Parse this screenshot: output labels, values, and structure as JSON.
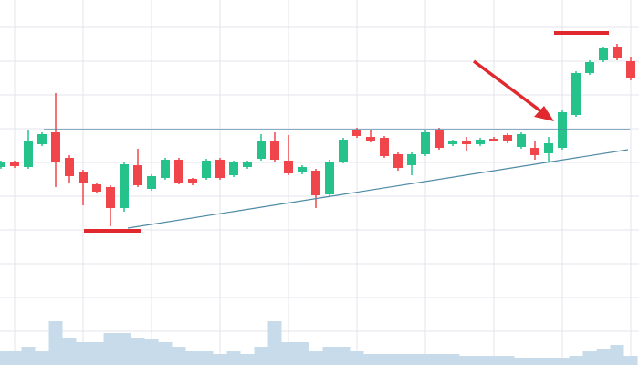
{
  "chart_data": {
    "type": "candlestick",
    "ylim": [
      0,
      400
    ],
    "up_color": "#26c28b",
    "down_color": "#f0454a",
    "volume_color": "#c7dbea",
    "open": [
      217,
      222,
      217,
      242,
      255,
      227,
      212,
      198,
      195,
      172,
      219,
      193,
      205,
      225,
      204,
      205,
      225,
      208,
      217,
      226,
      246,
      224,
      211,
      213,
      187,
      223,
      258,
      250,
      249,
      231,
      219,
      231,
      258,
      242,
      246,
      242,
      248,
      252,
      239,
      238,
      232,
      238,
      274,
      320,
      334,
      348,
      333
    ],
    "high": [
      224,
      224,
      257,
      255,
      298,
      230,
      214,
      200,
      197,
      222,
      237,
      209,
      227,
      227,
      205,
      226,
      227,
      224,
      224,
      253,
      255,
      252,
      219,
      215,
      225,
      249,
      260,
      258,
      251,
      233,
      233,
      257,
      260,
      247,
      250,
      249,
      250,
      254,
      255,
      245,
      250,
      279,
      322,
      334,
      349,
      352,
      338
    ],
    "low": [
      215,
      216,
      215,
      240,
      195,
      200,
      175,
      188,
      152,
      168,
      195,
      191,
      203,
      198,
      197,
      203,
      203,
      206,
      215,
      224,
      223,
      208,
      209,
      172,
      185,
      221,
      249,
      244,
      227,
      213,
      208,
      229,
      236,
      240,
      235,
      240,
      245,
      243,
      237,
      225,
      222,
      236,
      272,
      318,
      332,
      334,
      312
    ],
    "close": [
      222,
      218,
      245,
      253,
      222,
      207,
      200,
      190,
      172,
      220,
      197,
      207,
      225,
      200,
      200,
      224,
      205,
      222,
      222,
      245,
      225,
      210,
      217,
      186,
      223,
      247,
      251,
      246,
      229,
      216,
      231,
      255,
      238,
      245,
      242,
      247,
      246,
      245,
      253,
      230,
      243,
      277,
      320,
      332,
      347,
      336,
      314
    ],
    "volume": [
      15,
      15,
      20,
      15,
      48,
      30,
      25,
      25,
      35,
      35,
      30,
      28,
      25,
      20,
      15,
      15,
      12,
      15,
      12,
      20,
      48,
      25,
      25,
      15,
      20,
      20,
      15,
      12,
      12,
      12,
      12,
      12,
      12,
      12,
      10,
      10,
      10,
      10,
      8,
      8,
      8,
      8,
      10,
      15,
      18,
      22,
      10
    ]
  }
}
